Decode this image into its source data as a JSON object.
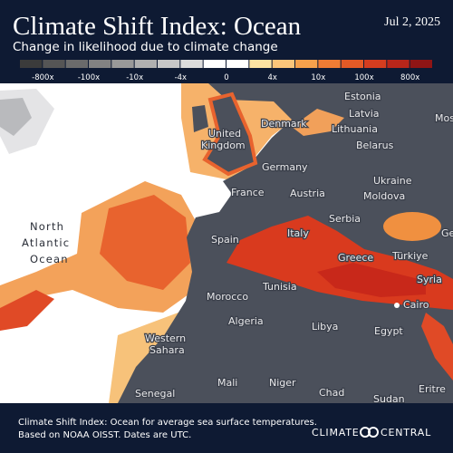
{
  "header": {
    "title": "Climate Shift Index: Ocean",
    "date": "Jul 2, 2025",
    "subtitle": "Change in likelihood due to climate change"
  },
  "legend": {
    "colors": [
      "#3b3b3b",
      "#555555",
      "#6b6b6b",
      "#828282",
      "#999999",
      "#b0b0b0",
      "#c7c7c7",
      "#dcdcdc",
      "#ffffff",
      "#ffffff",
      "#fde3a2",
      "#fbc57a",
      "#f6a14c",
      "#ef7c34",
      "#e45a26",
      "#d43d1f",
      "#b8261a",
      "#8f1515"
    ],
    "labels": [
      "-800x",
      "-100x",
      "-10x",
      "-4x",
      "0",
      "4x",
      "10x",
      "100x",
      "800x"
    ]
  },
  "map": {
    "labels": [
      "Estonia",
      "Latvia",
      "Lithuania",
      "Mos",
      "Denmark",
      "United",
      "Kingdom",
      "Belarus",
      "Germany",
      "Ukraine",
      "France",
      "Austria",
      "Moldova",
      "Serbia",
      "Spain",
      "Italy",
      "Türkiye",
      "Greece",
      "Ge",
      "North",
      "Atlantic",
      "Ocean",
      "Tunisia",
      "Syria",
      "Morocco",
      "Cairo",
      "Algeria",
      "Libya",
      "Egypt",
      "Western",
      "Sahara",
      "Mali",
      "Niger",
      "Chad",
      "Sudan",
      "Senegal",
      "Eritre"
    ]
  },
  "footer": {
    "lines": [
      "Climate Shift Index: Ocean for average sea surface temperatures.",
      "Based on NOAA OISST. Dates are UTC."
    ],
    "logo": [
      "CLIMATE",
      "CENTRAL"
    ]
  }
}
